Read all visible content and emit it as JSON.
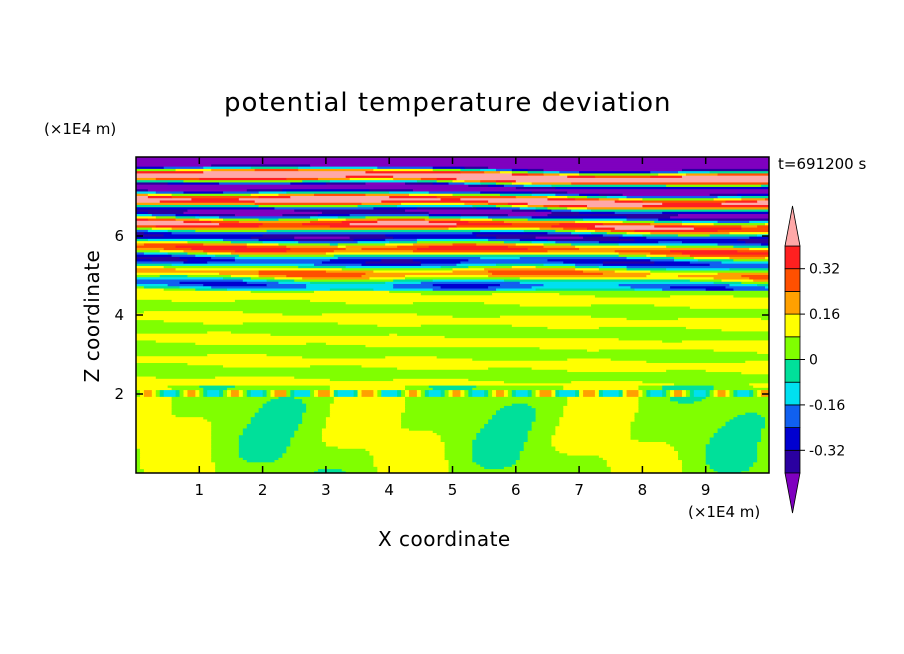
{
  "chart_data": {
    "type": "heatmap",
    "title": "potential temperature deviation",
    "xlabel": "X coordinate",
    "ylabel": "Z coordinate",
    "x_unit": "(×1E4 m)",
    "y_unit": "(×1E4 m)",
    "time_label": "t=691200 s",
    "xlim": [
      0,
      10
    ],
    "ylim": [
      0,
      8
    ],
    "x_ticks": [
      1,
      2,
      3,
      4,
      5,
      6,
      7,
      8,
      9
    ],
    "y_ticks": [
      2,
      4,
      6
    ],
    "colorbar": {
      "levels": [
        -0.4,
        -0.32,
        -0.24,
        -0.16,
        -0.08,
        0,
        0.08,
        0.16,
        0.24,
        0.32,
        0.4
      ],
      "labels": [
        "0.32",
        "0.16",
        "0",
        "-0.16",
        "-0.32"
      ],
      "label_values": [
        0.32,
        0.16,
        0,
        -0.16,
        -0.32
      ],
      "colors": [
        "#7f00bf",
        "#2a00a0",
        "#0000d0",
        "#1060f0",
        "#00e0f0",
        "#00e09a",
        "#80ff00",
        "#ffff00",
        "#ffa000",
        "#ff5000",
        "#ff2020",
        "#ffa8a8"
      ]
    }
  }
}
